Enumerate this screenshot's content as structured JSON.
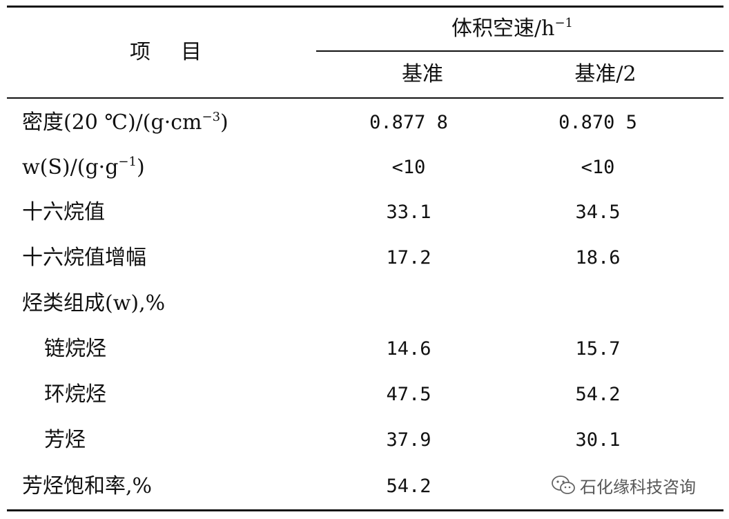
{
  "table": {
    "header": {
      "item_label_a": "项",
      "item_label_b": "目",
      "group_label": "体积空速/h",
      "group_label_sup": "−1",
      "columns": [
        "基准",
        "基准/2"
      ]
    },
    "rows": [
      {
        "label": "密度(20 ℃)/(g·cm",
        "label_sup": "−3",
        "label_tail": ")",
        "values": [
          "0.877 8",
          "0.870 5"
        ]
      },
      {
        "label": "w(S)/(g·g",
        "label_sup": "−1",
        "label_tail": ")",
        "values": [
          "<10",
          "<10"
        ]
      },
      {
        "label": "十六烷值",
        "values": [
          "33.1",
          "34.5"
        ]
      },
      {
        "label": "十六烷值增幅",
        "values": [
          "17.2",
          "18.6"
        ]
      },
      {
        "label": "烃类组成(w),%",
        "values": [
          "",
          ""
        ]
      },
      {
        "label": "链烷烃",
        "values": [
          "14.6",
          "15.7"
        ]
      },
      {
        "label": "环烷烃",
        "values": [
          "47.5",
          "54.2"
        ]
      },
      {
        "label": "芳烃",
        "values": [
          "37.9",
          "30.1"
        ]
      },
      {
        "label": "芳烃饱和率,%",
        "values": [
          "54.2",
          ""
        ]
      }
    ]
  },
  "watermark": {
    "icon": "wechat-icon",
    "text": "石化缘科技咨询"
  }
}
